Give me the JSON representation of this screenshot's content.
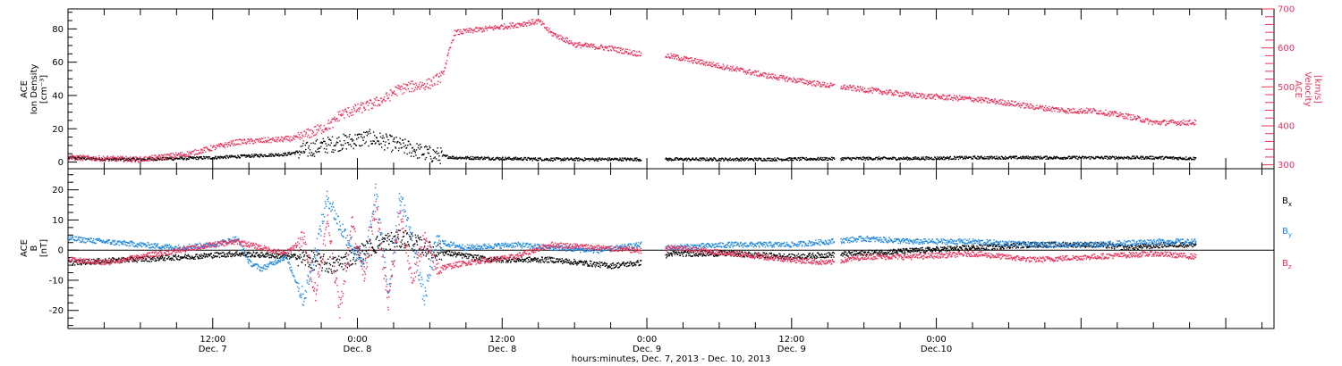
{
  "colors": {
    "black": "#000000",
    "velocity": "#e8315a",
    "by": "#1f87e0",
    "bz": "#e8315a"
  },
  "chart_data": [
    {
      "type": "scatter",
      "panel": "top",
      "xlim_hours": [
        0,
        100
      ],
      "ylabel_left": [
        "ACE",
        "Ion Density",
        "[cm⁻³]"
      ],
      "ylabel_right": [
        "ACE",
        "Velocity",
        "[km/s]"
      ],
      "ylim_left": [
        -4,
        92
      ],
      "ylim_right": [
        290,
        700
      ],
      "yticks_left": [
        0,
        20,
        40,
        60,
        80
      ],
      "yticks_right": [
        300,
        400,
        500,
        600,
        700
      ],
      "series": [
        {
          "key": "density",
          "axis": "left",
          "color": "black",
          "x": [
            0,
            3,
            6,
            9,
            12,
            15,
            18,
            19.5,
            20,
            21,
            22.5,
            23.5,
            25,
            26.5,
            28,
            30,
            32,
            40,
            46,
            50,
            58,
            66,
            70,
            75,
            81,
            86,
            90,
            93.5
          ],
          "y": [
            3,
            2,
            2,
            2.5,
            3,
            4,
            5,
            7,
            8,
            10,
            12,
            13,
            15,
            12,
            9,
            5,
            3,
            2,
            2,
            2,
            2,
            2.5,
            2.5,
            3,
            3,
            3,
            3,
            2.5
          ],
          "gaps": [
            [
              47.5,
              49.5
            ],
            [
              63.5,
              64
            ]
          ]
        },
        {
          "key": "velocity",
          "axis": "right",
          "color": "velocity",
          "x": [
            0,
            6,
            10,
            14,
            17,
            19,
            21,
            22,
            22.5,
            23,
            25,
            26.5,
            27,
            28,
            29,
            30,
            31,
            32,
            37,
            39,
            40,
            42,
            45,
            47.5,
            50,
            58,
            63,
            70,
            75,
            78,
            80,
            83,
            85,
            88,
            90,
            93.5
          ],
          "y": [
            320,
            315,
            330,
            360,
            365,
            370,
            395,
            410,
            430,
            435,
            455,
            475,
            490,
            500,
            505,
            510,
            530,
            640,
            660,
            670,
            640,
            610,
            600,
            585,
            580,
            530,
            505,
            480,
            470,
            460,
            450,
            440,
            440,
            425,
            410,
            410
          ],
          "gaps": [
            [
              47.5,
              49.5
            ],
            [
              63.5,
              64
            ]
          ]
        }
      ]
    },
    {
      "type": "scatter",
      "panel": "bottom",
      "xlim_hours": [
        0,
        100
      ],
      "ylabel_left": [
        "ACE",
        "B",
        "[nT]"
      ],
      "ylim": [
        -26,
        27
      ],
      "yticks": [
        -20,
        -10,
        0,
        10,
        20
      ],
      "zero_line": true,
      "series": [
        {
          "name": "Bx",
          "color": "black",
          "x": [
            0,
            5,
            10,
            14,
            19,
            22,
            24,
            26,
            28,
            30,
            35,
            40,
            45,
            47.5,
            50,
            55,
            60,
            65,
            70,
            75,
            80,
            85,
            88,
            91,
            93.5
          ],
          "y": [
            -4,
            -3,
            -2,
            -1,
            -2,
            -5,
            -1,
            3,
            4,
            0,
            -3,
            -3,
            -5,
            -4,
            -1,
            -1,
            -2,
            -1,
            0,
            1,
            2,
            2,
            1,
            2,
            2
          ],
          "gaps": [
            [
              47.5,
              49.5
            ],
            [
              63.5,
              64
            ]
          ]
        },
        {
          "name": "By",
          "color": "by",
          "x": [
            0,
            3,
            6,
            9,
            12,
            14,
            15,
            16,
            18,
            19.5,
            20.5,
            21.5,
            22.5,
            23.5,
            24.5,
            25.5,
            26.5,
            27.5,
            28.5,
            29.5,
            30.5,
            33,
            37,
            40,
            44,
            47.5,
            50,
            55,
            60,
            63,
            66,
            70,
            75,
            80,
            85,
            90,
            93.5
          ],
          "y": [
            4,
            3,
            2,
            1,
            2,
            4,
            -4,
            -6,
            -2,
            -16,
            0,
            18,
            8,
            2,
            -6,
            20,
            -14,
            18,
            4,
            -16,
            3,
            1,
            2,
            1,
            0,
            2,
            1,
            2,
            2,
            3,
            4,
            3,
            3,
            2,
            2,
            3,
            3
          ],
          "gaps": [
            [
              47.5,
              49.5
            ],
            [
              63.5,
              64
            ]
          ]
        },
        {
          "name": "Bz",
          "color": "bz",
          "x": [
            0,
            3,
            6,
            9,
            12,
            14,
            16,
            18,
            19.5,
            20.5,
            21.5,
            22.5,
            23.5,
            24.5,
            25.5,
            26.5,
            27.5,
            28.5,
            29.5,
            30.5,
            33,
            37,
            40,
            44,
            47.5,
            50,
            55,
            60,
            63,
            66,
            70,
            75,
            80,
            85,
            90,
            93.5
          ],
          "y": [
            -3,
            -4,
            -2,
            0,
            2,
            3,
            1,
            -1,
            4,
            -14,
            10,
            -20,
            10,
            -8,
            14,
            -18,
            12,
            -10,
            4,
            -6,
            -4,
            -2,
            2,
            1,
            0,
            1,
            -1,
            -3,
            -4,
            -2,
            -2,
            -1,
            -3,
            -2,
            -1,
            -2
          ],
          "gaps": [
            [
              47.5,
              49.5
            ],
            [
              63.5,
              64
            ]
          ]
        }
      ]
    }
  ],
  "x_axis": {
    "ticks": [
      {
        "hour": 12,
        "time": "12:00",
        "day": "Dec. 7"
      },
      {
        "hour": 24,
        "time": "0:00",
        "day": "Dec. 8"
      },
      {
        "hour": 36,
        "time": "12:00",
        "day": "Dec. 8"
      },
      {
        "hour": 48,
        "time": "0:00",
        "day": "Dec. 9"
      },
      {
        "hour": 60,
        "time": "12:00",
        "day": "Dec. 9"
      },
      {
        "hour": 72,
        "time": "0:00",
        "day": "Dec.10"
      }
    ],
    "title": "hours:minutes, Dec.  7, 2013 - Dec. 10, 2013"
  },
  "legend": {
    "bx": {
      "base": "B",
      "sub": "x"
    },
    "by": {
      "base": "B",
      "sub": "y"
    },
    "bz": {
      "base": "B",
      "sub": "z"
    }
  }
}
